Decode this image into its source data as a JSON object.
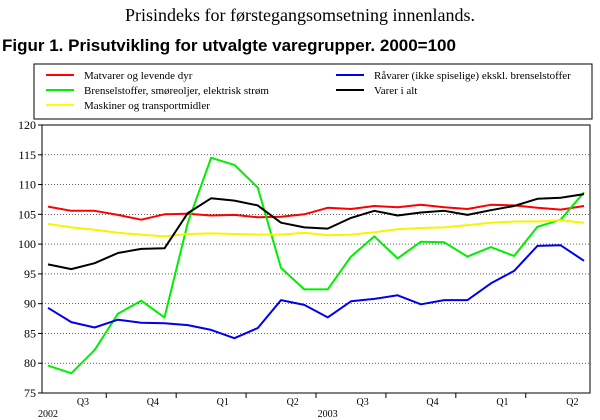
{
  "header": {
    "page_heading": "Prisindeks for førstegangsomsetning innenlands.",
    "figure_title": "Figur 1. Prisutvikling for utvalgte varegrupper. 2000=100"
  },
  "chart_data": {
    "type": "line",
    "title": "Figur 1. Prisutvikling for utvalgte varegrupper. 2000=100",
    "xlabel": "",
    "ylabel": "",
    "ylim": [
      75,
      120
    ],
    "yticks": [
      75,
      80,
      85,
      90,
      95,
      100,
      105,
      110,
      115,
      120
    ],
    "n_points": 24,
    "x_quarter_labels": [
      {
        "label": "Q3",
        "index": 2
      },
      {
        "label": "Q4",
        "index": 5
      },
      {
        "label": "Q1",
        "index": 8
      },
      {
        "label": "Q2",
        "index": 11
      },
      {
        "label": "Q3",
        "index": 14
      },
      {
        "label": "Q4",
        "index": 17
      },
      {
        "label": "Q1",
        "index": 20
      },
      {
        "label": "Q2",
        "index": 23
      }
    ],
    "x_year_labels": [
      {
        "label": "2002",
        "index": 0
      },
      {
        "label": "2003",
        "index": 12
      }
    ],
    "grid": true,
    "legend_placement": "top",
    "series": [
      {
        "name": "Matvarer og levende dyr",
        "color": "#ff0000",
        "values": [
          106.3,
          105.6,
          105.6,
          104.9,
          104.1,
          105.0,
          105.1,
          104.8,
          104.9,
          104.5,
          104.6,
          105.0,
          106.1,
          105.9,
          106.4,
          106.2,
          106.6,
          106.2,
          105.9,
          106.6,
          106.5,
          106.1,
          105.8,
          106.4
        ]
      },
      {
        "name": "Brenselstoffer, smøreoljer, elektrisk strøm",
        "color": "#00ee00",
        "values": [
          79.6,
          78.3,
          82.2,
          88.3,
          90.5,
          87.7,
          103.6,
          114.5,
          113.3,
          109.5,
          96.0,
          92.4,
          92.4,
          97.9,
          101.3,
          97.6,
          100.4,
          100.3,
          97.9,
          99.5,
          98.0,
          102.9,
          104.1,
          108.7
        ]
      },
      {
        "name": "Maskiner og transportmidler",
        "color": "#ffff00",
        "values": [
          103.4,
          102.8,
          102.4,
          101.9,
          101.6,
          101.3,
          101.7,
          101.8,
          101.7,
          101.6,
          101.6,
          101.9,
          101.5,
          101.6,
          102.0,
          102.5,
          102.7,
          102.8,
          103.2,
          103.6,
          103.8,
          103.8,
          104.0,
          103.6
        ]
      },
      {
        "name": "Råvarer (ikke spiselige) ekskl. brenselstoffer",
        "color": "#0000ee",
        "values": [
          89.3,
          86.9,
          86.0,
          87.3,
          86.8,
          86.7,
          86.4,
          85.6,
          84.2,
          85.9,
          90.6,
          89.8,
          87.7,
          90.4,
          90.8,
          91.4,
          89.9,
          90.6,
          90.6,
          93.4,
          95.5,
          99.7,
          99.8,
          97.2
        ]
      },
      {
        "name": "Varer i alt",
        "color": "#000000",
        "values": [
          96.6,
          95.8,
          96.8,
          98.5,
          99.2,
          99.3,
          105.2,
          107.7,
          107.3,
          106.5,
          103.6,
          102.8,
          102.6,
          104.4,
          105.6,
          104.8,
          105.3,
          105.6,
          104.9,
          105.7,
          106.4,
          107.6,
          107.8,
          108.4
        ]
      }
    ]
  }
}
